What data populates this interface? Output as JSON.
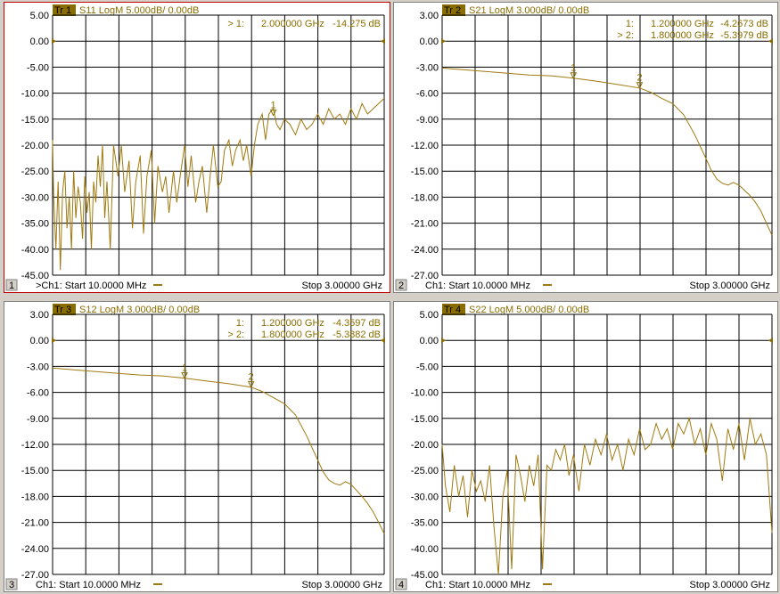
{
  "colors": {
    "trace": "#a07a10",
    "marker_text": "#8a6d00",
    "active_border": "#c00000"
  },
  "chart_data": [
    {
      "type": "line",
      "trace_label": "Tr 1",
      "title": "S11 LogM 5.000dB/  0.00dB",
      "channel_num": "1",
      "footer_start": ">Ch1: Start  10.0000 MHz",
      "footer_stop": "Stop  3.00000 GHz",
      "active": true,
      "y_ticks": [
        "5.00",
        "0.00",
        "-5.00",
        "-10.00",
        "-15.00",
        "-20.00",
        "-25.00",
        "-30.00",
        "-35.00",
        "-40.00",
        "-45.00"
      ],
      "ylim": [
        -47,
        5
      ],
      "xlim": [
        0.01,
        3.0
      ],
      "marker_rows": [
        {
          "sel": "> 1:",
          "freq": "2.000000 GHz",
          "val": "-14.275 dB"
        }
      ],
      "markers": [
        {
          "label": "1",
          "x": 2.0,
          "y": -14.275
        }
      ],
      "x": [
        0.01,
        0.02,
        0.04,
        0.06,
        0.08,
        0.1,
        0.12,
        0.14,
        0.16,
        0.18,
        0.2,
        0.22,
        0.24,
        0.26,
        0.28,
        0.3,
        0.32,
        0.34,
        0.36,
        0.38,
        0.4,
        0.42,
        0.44,
        0.46,
        0.48,
        0.5,
        0.53,
        0.56,
        0.6,
        0.63,
        0.66,
        0.7,
        0.73,
        0.76,
        0.8,
        0.83,
        0.86,
        0.9,
        0.93,
        0.96,
        1.0,
        1.03,
        1.06,
        1.1,
        1.13,
        1.16,
        1.2,
        1.23,
        1.26,
        1.3,
        1.33,
        1.36,
        1.4,
        1.43,
        1.46,
        1.5,
        1.53,
        1.56,
        1.6,
        1.63,
        1.66,
        1.7,
        1.73,
        1.76,
        1.8,
        1.83,
        1.86,
        1.9,
        1.93,
        1.96,
        2.0,
        2.03,
        2.06,
        2.1,
        2.15,
        2.2,
        2.25,
        2.3,
        2.35,
        2.4,
        2.45,
        2.5,
        2.55,
        2.6,
        2.65,
        2.7,
        2.75,
        2.8,
        2.85,
        2.9,
        2.95,
        3.0
      ],
      "y": [
        -19,
        -30,
        -40,
        -27,
        -44,
        -29,
        -25,
        -36,
        -30,
        -40,
        -25,
        -34,
        -28,
        -31,
        -38,
        -26,
        -33,
        -29,
        -40,
        -27,
        -31,
        -22,
        -28,
        -20,
        -34,
        -27,
        -40,
        -20,
        -26,
        -20,
        -29,
        -23,
        -36,
        -27,
        -22,
        -37,
        -26,
        -21,
        -35,
        -24,
        -29,
        -26,
        -33,
        -25,
        -31,
        -26,
        -20,
        -28,
        -22,
        -31,
        -27,
        -24,
        -33,
        -26,
        -20,
        -28,
        -27,
        -21,
        -19,
        -24,
        -21,
        -19,
        -23,
        -20,
        -26,
        -20,
        -16,
        -14,
        -19,
        -14,
        -13,
        -16,
        -17,
        -15,
        -16,
        -18,
        -15,
        -17,
        -16,
        -14,
        -16,
        -13,
        -15,
        -14,
        -16,
        -13,
        -15,
        -12,
        -14,
        -13,
        -12,
        -11
      ]
    },
    {
      "type": "line",
      "trace_label": "Tr  2",
      "title": "S21 LogM 3.000dB/  0.00dB",
      "channel_num": "2",
      "footer_start": "Ch1: Start  10.0000 MHz",
      "footer_stop": "Stop  3.00000 GHz",
      "active": false,
      "y_ticks": [
        "3.00",
        "0.00",
        "-3.00",
        "-6.00",
        "-9.00",
        "-12.00",
        "-15.00",
        "-18.00",
        "-21.00",
        "-24.00",
        "-27.00"
      ],
      "ylim": [
        -28.2,
        3
      ],
      "xlim": [
        0.01,
        3.0
      ],
      "marker_rows": [
        {
          "sel": "1:",
          "freq": "1.200000 GHz",
          "val": "-4.2673 dB"
        },
        {
          "sel": "> 2:",
          "freq": "1.800000 GHz",
          "val": "-5.3979 dB"
        }
      ],
      "markers": [
        {
          "label": "1",
          "x": 1.2,
          "y": -4.2673
        },
        {
          "label": "2",
          "x": 1.8,
          "y": -5.3979
        }
      ],
      "x": [
        0.01,
        0.2,
        0.4,
        0.6,
        0.8,
        1.0,
        1.2,
        1.4,
        1.6,
        1.8,
        1.9,
        2.0,
        2.1,
        2.2,
        2.3,
        2.4,
        2.45,
        2.5,
        2.55,
        2.6,
        2.65,
        2.7,
        2.75,
        2.8,
        2.85,
        2.9,
        2.95,
        3.0
      ],
      "y": [
        -3.1,
        -3.3,
        -3.5,
        -3.7,
        -3.9,
        -4.0,
        -4.27,
        -4.6,
        -5.0,
        -5.4,
        -5.9,
        -6.6,
        -7.2,
        -8.5,
        -10.8,
        -13.5,
        -14.9,
        -15.9,
        -16.4,
        -16.6,
        -16.3,
        -16.6,
        -17.2,
        -17.8,
        -18.6,
        -19.6,
        -21.0,
        -22.4
      ]
    },
    {
      "type": "line",
      "trace_label": "Tr  3",
      "title": "S12 LogM 3.000dB/  0.00dB",
      "channel_num": "3",
      "footer_start": "Ch1: Start  10.0000 MHz",
      "footer_stop": "Stop  3.00000 GHz",
      "active": false,
      "y_ticks": [
        "3.00",
        "0.00",
        "-3.00",
        "-6.00",
        "-9.00",
        "-12.00",
        "-15.00",
        "-18.00",
        "-21.00",
        "-24.00",
        "-27.00"
      ],
      "ylim": [
        -28.2,
        3
      ],
      "xlim": [
        0.01,
        3.0
      ],
      "marker_rows": [
        {
          "sel": "1:",
          "freq": "1.200000 GHz",
          "val": "-4.3597 dB"
        },
        {
          "sel": "> 2:",
          "freq": "1.800000 GHz",
          "val": "-5.3882 dB"
        }
      ],
      "markers": [
        {
          "label": "1",
          "x": 1.2,
          "y": -4.3597
        },
        {
          "label": "2",
          "x": 1.8,
          "y": -5.3882
        }
      ],
      "x": [
        0.01,
        0.2,
        0.4,
        0.6,
        0.8,
        1.0,
        1.2,
        1.4,
        1.6,
        1.8,
        1.9,
        2.0,
        2.1,
        2.2,
        2.3,
        2.4,
        2.45,
        2.5,
        2.55,
        2.6,
        2.65,
        2.7,
        2.75,
        2.8,
        2.85,
        2.9,
        2.95,
        3.0
      ],
      "y": [
        -3.2,
        -3.4,
        -3.6,
        -3.8,
        -4.0,
        -4.1,
        -4.36,
        -4.7,
        -5.0,
        -5.39,
        -5.9,
        -6.6,
        -7.3,
        -8.6,
        -11.0,
        -13.8,
        -15.2,
        -16.1,
        -16.5,
        -16.7,
        -16.3,
        -16.6,
        -17.3,
        -18.0,
        -18.8,
        -19.8,
        -21.0,
        -22.3
      ]
    },
    {
      "type": "line",
      "trace_label": "Tr  4",
      "title": "S22 LogM 5.000dB/  0.00dB",
      "channel_num": "4",
      "footer_start": "Ch1: Start  10.0000 MHz",
      "footer_stop": "Stop  3.00000 GHz",
      "active": false,
      "y_ticks": [
        "5.00",
        "0.00",
        "-5.00",
        "-10.00",
        "-15.00",
        "-20.00",
        "-25.00",
        "-30.00",
        "-35.00",
        "-40.00",
        "-45.00"
      ],
      "ylim": [
        -47,
        5
      ],
      "xlim": [
        0.01,
        3.0
      ],
      "marker_rows": [],
      "markers": [],
      "x": [
        0.01,
        0.04,
        0.08,
        0.12,
        0.16,
        0.2,
        0.24,
        0.28,
        0.32,
        0.36,
        0.4,
        0.44,
        0.48,
        0.52,
        0.56,
        0.6,
        0.64,
        0.68,
        0.72,
        0.76,
        0.8,
        0.84,
        0.88,
        0.92,
        0.96,
        1.0,
        1.04,
        1.08,
        1.12,
        1.16,
        1.2,
        1.25,
        1.3,
        1.35,
        1.4,
        1.45,
        1.5,
        1.55,
        1.6,
        1.65,
        1.7,
        1.75,
        1.8,
        1.85,
        1.9,
        1.95,
        2.0,
        2.05,
        2.1,
        2.15,
        2.2,
        2.25,
        2.3,
        2.35,
        2.4,
        2.45,
        2.5,
        2.55,
        2.6,
        2.65,
        2.7,
        2.75,
        2.8,
        2.85,
        2.9,
        2.95,
        3.0
      ],
      "y": [
        -20,
        -28,
        -33,
        -24,
        -30,
        -26,
        -34,
        -25,
        -29,
        -27,
        -31,
        -24,
        -36,
        -45,
        -30,
        -25,
        -44,
        -22,
        -26,
        -31,
        -24,
        -28,
        -22,
        -44,
        -24,
        -25,
        -21,
        -23,
        -20,
        -26,
        -22,
        -29,
        -20,
        -24,
        -19,
        -22,
        -18,
        -23,
        -20,
        -25,
        -19,
        -22,
        -17,
        -21,
        -20,
        -16,
        -19,
        -17,
        -21,
        -16,
        -18,
        -15,
        -20,
        -17,
        -22,
        -16,
        -19,
        -27,
        -17,
        -21,
        -16,
        -23,
        -15,
        -20,
        -18,
        -22,
        -37
      ]
    }
  ]
}
